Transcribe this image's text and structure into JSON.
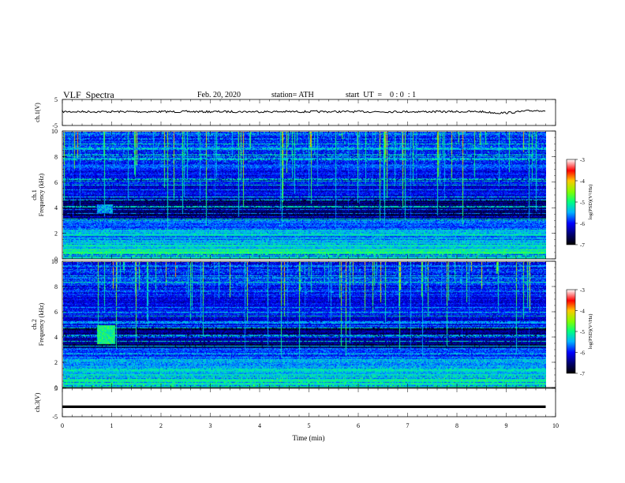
{
  "chart_data": {
    "type": "heatmap",
    "title": "VLF  Spectra",
    "date": "Feb. 20, 2020",
    "station": "station= ATH",
    "start_ut": "start  UT  =    0 : 0  : 1",
    "xlabel": "Time  (min)",
    "xlim": [
      0,
      10
    ],
    "x_ticks": [
      "0",
      "1",
      "2",
      "3",
      "4",
      "5",
      "6",
      "7",
      "8",
      "9",
      "10"
    ],
    "panels": [
      {
        "id": "ch1-voltage",
        "ylabel": "ch.1(V)",
        "ylim": [
          -5,
          5
        ],
        "y_ticks": [
          "5",
          "-5"
        ],
        "series": {
          "type": "line",
          "level": 0.3,
          "x_end": 9.8
        }
      },
      {
        "id": "ch1-spectrogram",
        "ylabel_top": "ch.1",
        "ylabel": "Frequency  (kHz)",
        "ylim": [
          0,
          10
        ],
        "y_ticks": [
          "0",
          "2",
          "4",
          "6",
          "8",
          "10"
        ],
        "x_end": 9.8,
        "colorbar": {
          "label": "log(PSD)(V²/Hz)",
          "range": [
            -7,
            -3
          ],
          "ticks": [
            "-3",
            "-4",
            "-5",
            "-6",
            "-7"
          ]
        },
        "features": [
          {
            "type": "burst",
            "t_start": 0.7,
            "t_end": 1.0,
            "f_low": 3.7,
            "f_high": 4.3,
            "log_psd": -5.5
          }
        ]
      },
      {
        "id": "ch2-spectrogram",
        "ylabel_top": "ch.2",
        "ylabel": "Frequency  (kHz)",
        "ylim": [
          0,
          10
        ],
        "y_ticks": [
          "0",
          "2",
          "4",
          "6",
          "8",
          "10"
        ],
        "x_end": 9.8,
        "colorbar": {
          "label": "log(PSD)(V²/Hz)",
          "range": [
            -7,
            -3
          ],
          "ticks": [
            "-3",
            "-4",
            "-5",
            "-6",
            "-7"
          ]
        },
        "features": [
          {
            "type": "burst",
            "t_start": 0.7,
            "t_end": 1.05,
            "f_low": 3.5,
            "f_high": 5.0,
            "log_psd": -5.0
          }
        ]
      },
      {
        "id": "ch3-voltage",
        "ylabel": "ch.3(V)",
        "ylim": [
          -5,
          5
        ],
        "y_ticks": [
          "5",
          "-5"
        ],
        "series": {
          "type": "line",
          "level": -1.5,
          "x_end": 9.8
        }
      }
    ],
    "colors": {
      "line": "#000000",
      "spec_bg": "#000010"
    }
  }
}
